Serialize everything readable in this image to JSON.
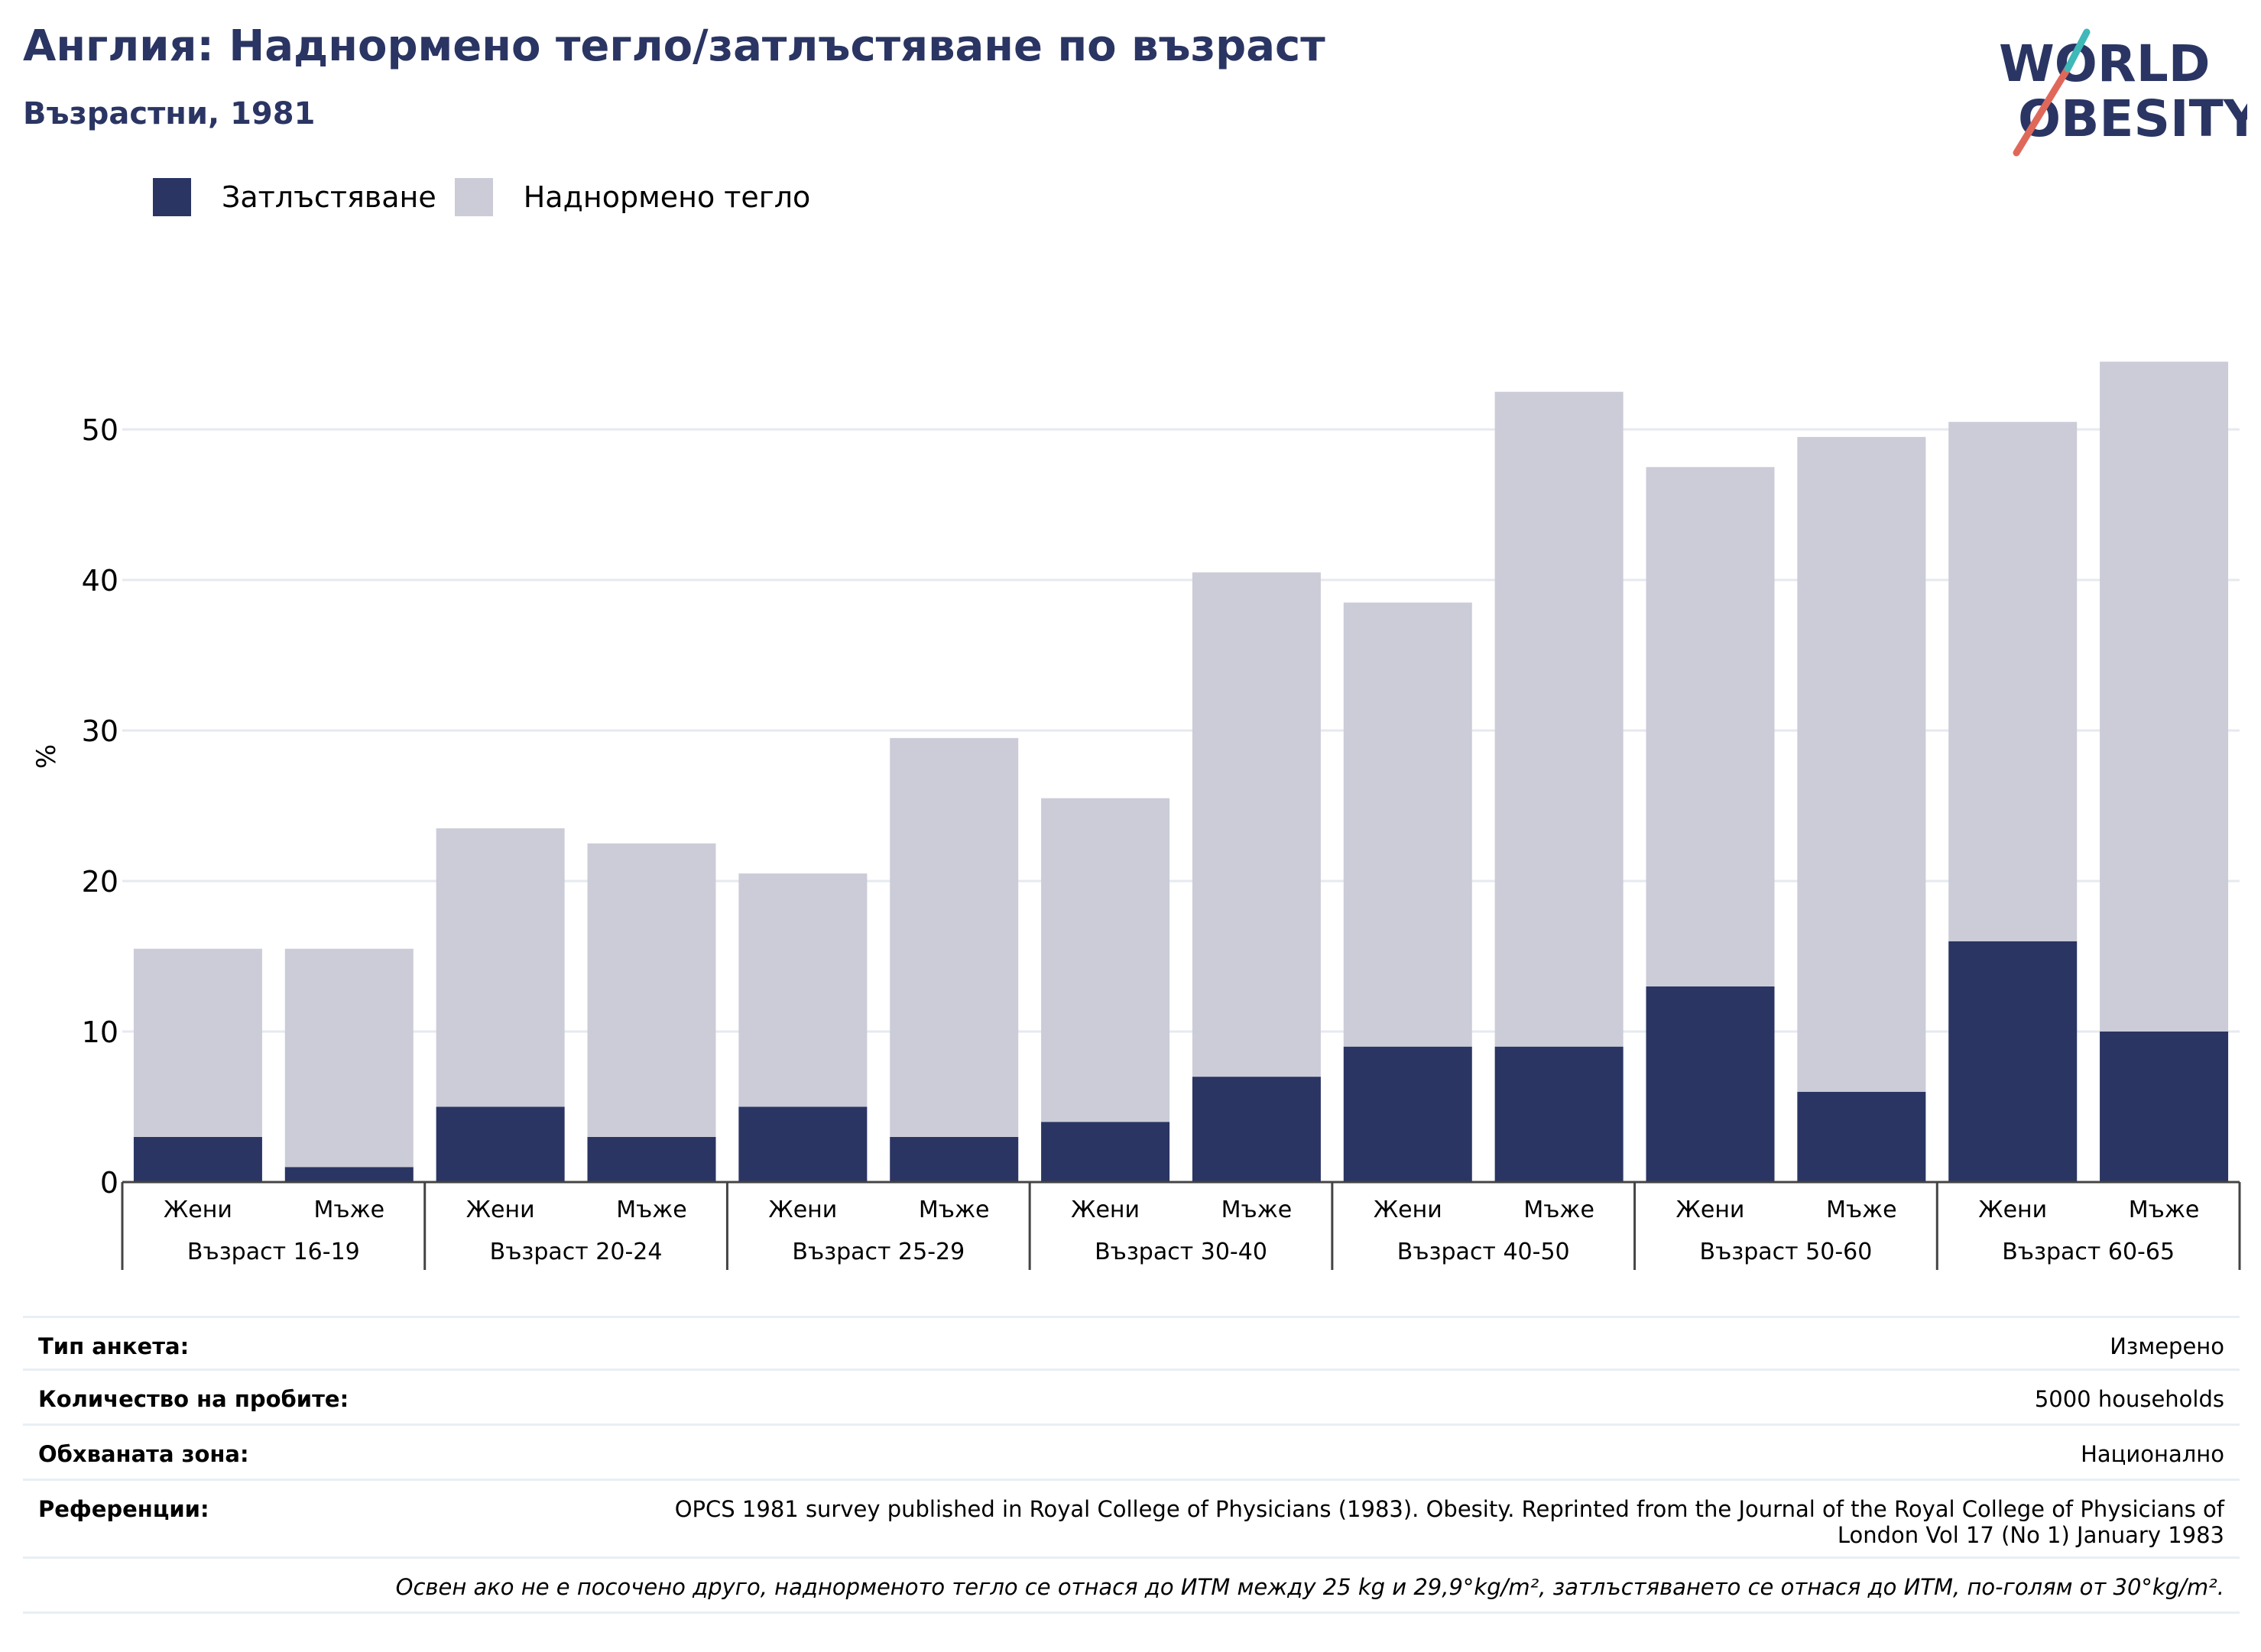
{
  "header": {
    "title": "Англия: Наднормено тегло/затлъстяване по възраст",
    "subtitle": "Възрастни, 1981"
  },
  "logo": {
    "line1": "WORLD",
    "line2": "OBESITY",
    "colors": {
      "text": "#2a3563",
      "slash_red": "#e0685a",
      "slash_teal": "#3fb8b8"
    }
  },
  "legend": [
    {
      "label": "Затлъстяване",
      "color": "#2a3563"
    },
    {
      "label": "Наднормено тегло",
      "color": "#cbccd8"
    }
  ],
  "chart_data": {
    "type": "bar",
    "stacked": true,
    "ylabel": "%",
    "xlabel": "",
    "ylim": [
      0,
      55
    ],
    "yticks": [
      0,
      10,
      20,
      30,
      40,
      50
    ],
    "grid": true,
    "legend_position": "top-left",
    "groups": [
      "Възраст 16-19",
      "Възраст 20-24",
      "Възраст 25-29",
      "Възраст 30-40",
      "Възраст 40-50",
      "Възраст 50-60",
      "Възраст 60-65"
    ],
    "categories": [
      "Жени",
      "Мъже",
      "Жени",
      "Мъже",
      "Жени",
      "Мъже",
      "Жени",
      "Мъже",
      "Жени",
      "Мъже",
      "Жени",
      "Мъже",
      "Жени",
      "Мъже"
    ],
    "series": [
      {
        "name": "Затлъстяване",
        "color": "#2a3563",
        "values": [
          3,
          1,
          5,
          3,
          5,
          3,
          4,
          7,
          9,
          9,
          13,
          6,
          16,
          10
        ]
      },
      {
        "name": "Наднормено тегло",
        "color": "#cbccd8",
        "values": [
          12.5,
          14.5,
          18.5,
          19.5,
          15.5,
          26.5,
          21.5,
          33.5,
          29.5,
          43.5,
          34.5,
          43.5,
          34.5,
          44.5
        ]
      }
    ]
  },
  "info": [
    {
      "label": "Тип анкета:",
      "value": [
        "Измерено"
      ]
    },
    {
      "label": "Количество на пробите:",
      "value": [
        "5000 households"
      ]
    },
    {
      "label": "Обхваната зона:",
      "value": [
        "Национално"
      ]
    },
    {
      "label": "Референции:",
      "value": [
        "OPCS 1981 survey published in Royal College of Physicians (1983). Obesity. Reprinted from the Journal of the Royal College of Physicians of",
        "London Vol 17 (No 1) January 1983"
      ]
    }
  ],
  "footnote": "Освен ако не е посочено друго, наднорменото тегло се отнася до ИТМ между 25 kg и 29,9°kg/m², затлъстяването се отнася до ИТМ, по-голям от 30°kg/m²."
}
